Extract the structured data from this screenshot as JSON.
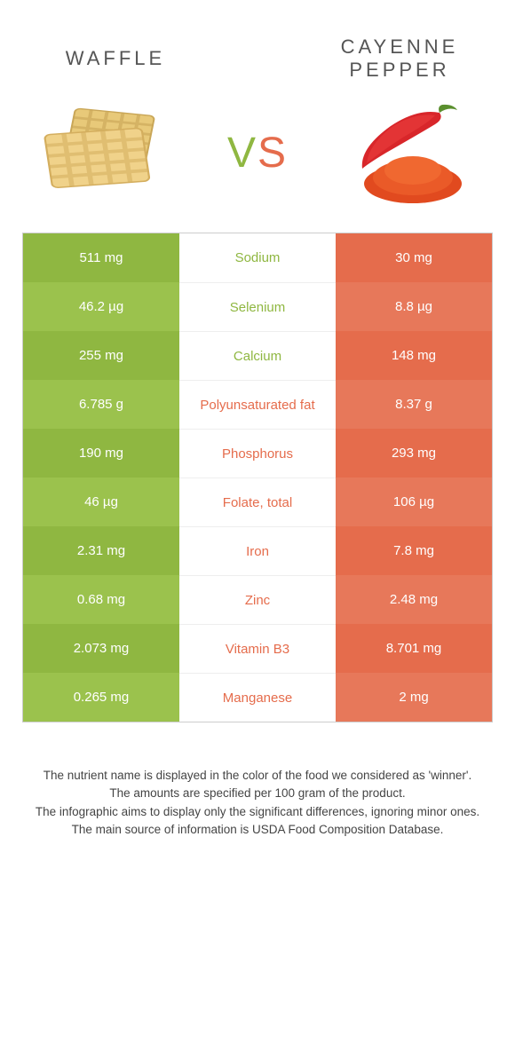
{
  "header": {
    "left_title": "Waffle",
    "right_title": "Cayenne pepper",
    "vs": {
      "v": "V",
      "s": "S"
    }
  },
  "colors": {
    "green_a": "#8fb741",
    "green_b": "#9bc24d",
    "orange_a": "#e56c4c",
    "orange_b": "#e7785a",
    "mid_green": "#8fb741",
    "mid_orange": "#e56c4c"
  },
  "rows": [
    {
      "left": "511 mg",
      "label": "Sodium",
      "right": "30 mg",
      "winner": "left"
    },
    {
      "left": "46.2 µg",
      "label": "Selenium",
      "right": "8.8 µg",
      "winner": "left"
    },
    {
      "left": "255 mg",
      "label": "Calcium",
      "right": "148 mg",
      "winner": "left"
    },
    {
      "left": "6.785 g",
      "label": "Polyunsaturated fat",
      "right": "8.37 g",
      "winner": "right"
    },
    {
      "left": "190 mg",
      "label": "Phosphorus",
      "right": "293 mg",
      "winner": "right"
    },
    {
      "left": "46 µg",
      "label": "Folate, total",
      "right": "106 µg",
      "winner": "right"
    },
    {
      "left": "2.31 mg",
      "label": "Iron",
      "right": "7.8 mg",
      "winner": "right"
    },
    {
      "left": "0.68 mg",
      "label": "Zinc",
      "right": "2.48 mg",
      "winner": "right"
    },
    {
      "left": "2.073 mg",
      "label": "Vitamin B3",
      "right": "8.701 mg",
      "winner": "right"
    },
    {
      "left": "0.265 mg",
      "label": "Manganese",
      "right": "2 mg",
      "winner": "right"
    }
  ],
  "footer": {
    "line1": "The nutrient name is displayed in the color of the food we considered as 'winner'.",
    "line2": "The amounts are specified per 100 gram of the product.",
    "line3": "The infographic aims to display only the significant differences, ignoring minor ones.",
    "line4": "The main source of information is USDA Food Composition Database."
  }
}
